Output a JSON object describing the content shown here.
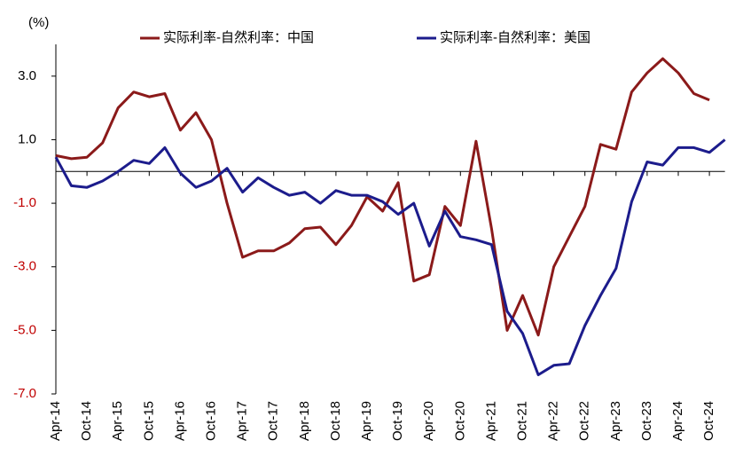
{
  "chart_data": {
    "type": "line",
    "y_unit": "(%)",
    "categories": [
      "Apr-14",
      null,
      "Oct-14",
      null,
      "Apr-15",
      null,
      "Oct-15",
      null,
      "Apr-16",
      null,
      "Oct-16",
      null,
      "Apr-17",
      null,
      "Oct-17",
      null,
      "Apr-18",
      null,
      "Oct-18",
      null,
      "Apr-19",
      null,
      "Oct-19",
      null,
      "Apr-20",
      null,
      "Oct-20",
      null,
      "Apr-21",
      null,
      "Oct-21",
      null,
      "Apr-22",
      null,
      "Oct-22",
      null,
      "Apr-23",
      null,
      "Oct-23",
      null,
      "Apr-24",
      null,
      "Oct-24",
      null
    ],
    "series": [
      {
        "name": "实际利率-自然利率：中国",
        "color": "#8b1a1a",
        "values": [
          0.5,
          0.4,
          0.45,
          0.9,
          2.0,
          2.5,
          2.35,
          2.45,
          1.3,
          1.85,
          1.0,
          -1.0,
          -2.7,
          -2.5,
          -2.5,
          -2.25,
          -1.8,
          -1.75,
          -2.3,
          -1.7,
          -0.8,
          -1.25,
          -0.35,
          -3.45,
          -3.25,
          -1.1,
          -1.7,
          0.95,
          -1.8,
          -5.0,
          -3.9,
          -5.15,
          -3.0,
          -2.05,
          -1.1,
          0.85,
          0.7,
          2.5,
          3.1,
          3.55,
          3.1,
          2.45,
          2.25,
          null
        ]
      },
      {
        "name": "实际利率-自然利率：美国",
        "color": "#1c1c8c",
        "values": [
          0.45,
          -0.45,
          -0.5,
          -0.3,
          0.0,
          0.35,
          0.25,
          0.75,
          -0.05,
          -0.5,
          -0.3,
          0.1,
          -0.65,
          -0.2,
          -0.5,
          -0.75,
          -0.65,
          -1.0,
          -0.6,
          -0.75,
          -0.75,
          -0.95,
          -1.35,
          -1.0,
          -2.35,
          -1.25,
          -2.05,
          -2.15,
          -2.3,
          -4.4,
          -5.1,
          -6.4,
          -6.1,
          -6.05,
          -4.85,
          -3.9,
          -3.05,
          -0.95,
          0.3,
          0.2,
          0.75,
          0.75,
          0.6,
          1.0
        ]
      }
    ],
    "ylim": [
      -7,
      4
    ],
    "yticks": [
      {
        "value": 3,
        "label": "3.0"
      },
      {
        "value": 1,
        "label": "1.0"
      },
      {
        "value": -1,
        "label": "-1.0"
      },
      {
        "value": -3,
        "label": "-3.0"
      },
      {
        "value": -5,
        "label": "-5.0"
      },
      {
        "value": -7,
        "label": "-7.0"
      }
    ],
    "legend": "top"
  }
}
